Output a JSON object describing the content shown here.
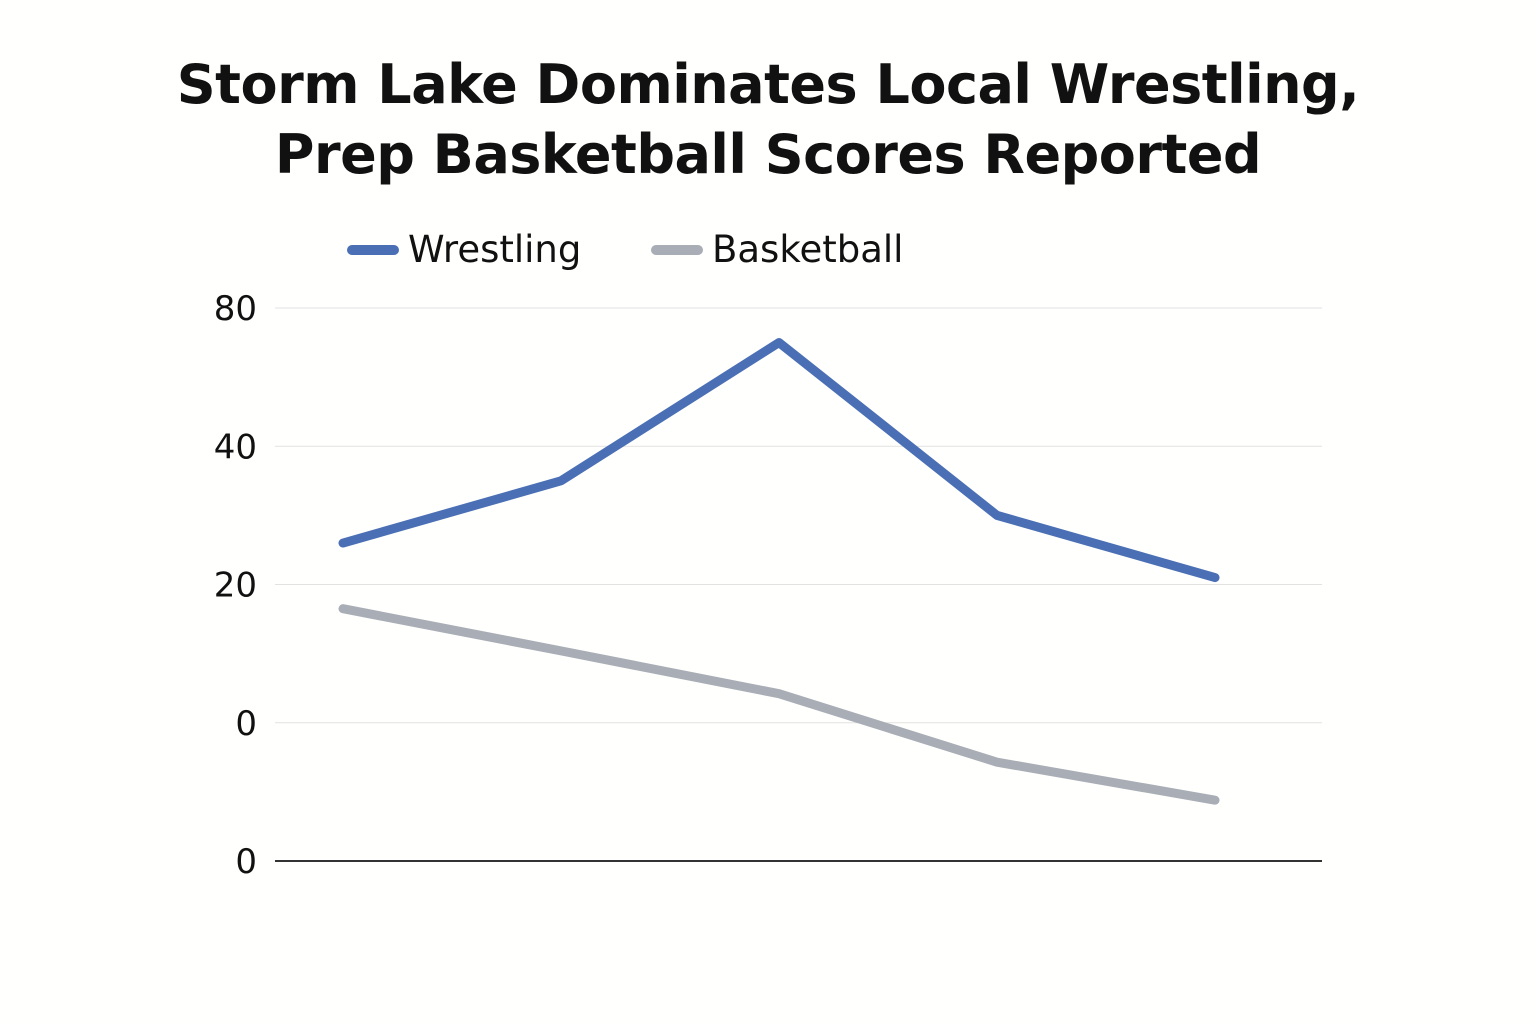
{
  "chart_data": {
    "type": "line",
    "title": [
      "Storm Lake Dominates Local Wrestling,",
      "Prep Basketball Scores Reported"
    ],
    "xlabel": "",
    "ylabel": "",
    "x": [
      1,
      2,
      3,
      4,
      5
    ],
    "ytick_labels": [
      "0",
      "0",
      "20",
      "40",
      "80"
    ],
    "ylim": [
      -20,
      60
    ],
    "grid": true,
    "legend_position": "top",
    "series": [
      {
        "name": "Wrestling",
        "color": "#4a6fb5",
        "values": [
          26,
          35,
          55,
          30,
          21
        ]
      },
      {
        "name": "Basketball",
        "color": "#a9adb5",
        "values": [
          16.5,
          10.4,
          4.2,
          -5.7,
          -11.2
        ]
      }
    ]
  }
}
